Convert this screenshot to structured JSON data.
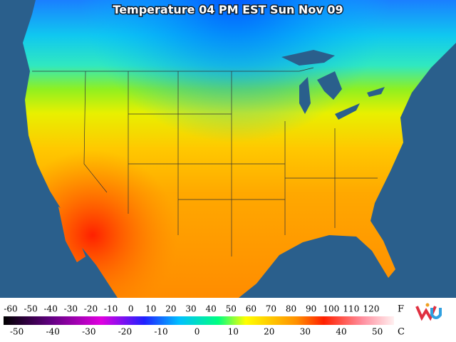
{
  "title": "Temperature 04 PM EST Sun Nov 09",
  "legend": {
    "fahrenheit": {
      "unit": "F",
      "ticks": [
        -60,
        -50,
        -40,
        -30,
        -20,
        -10,
        0,
        10,
        20,
        30,
        40,
        50,
        60,
        70,
        80,
        90,
        100,
        110,
        120
      ]
    },
    "celsius": {
      "unit": "C",
      "ticks": [
        -50,
        -40,
        -30,
        -20,
        -10,
        0,
        10,
        20,
        30,
        40,
        50
      ]
    }
  }
}
